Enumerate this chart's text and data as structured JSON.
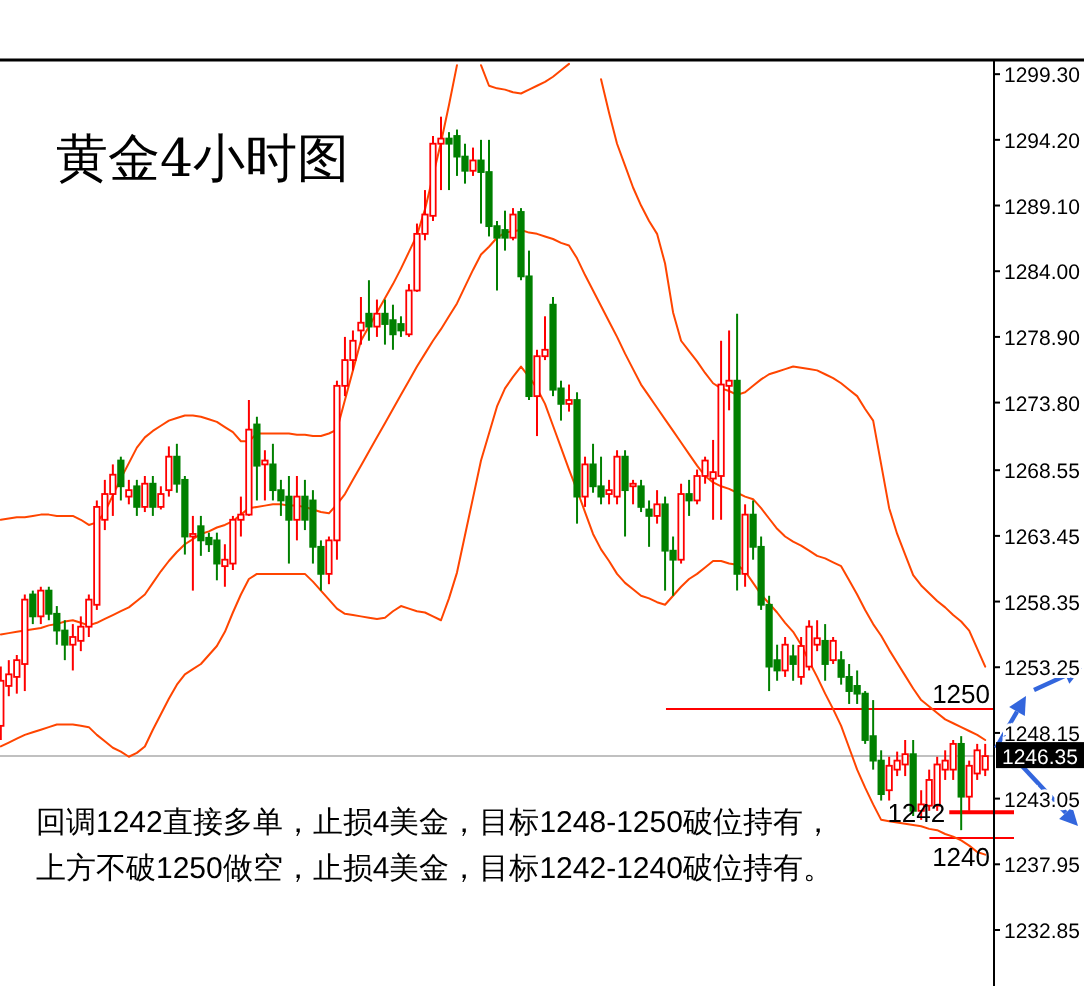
{
  "chart_data": {
    "type": "candlestick",
    "title": "黄金4小时图",
    "annotations": [
      "回调1242直接多单，止损4美金，目标1248-1250破位持有，",
      "上方不破1250做空，止损4美金，目标1242-1240破位持有。"
    ],
    "categories": [
      null,
      null,
      null,
      null,
      null,
      null,
      null,
      null,
      null,
      null,
      null,
      null,
      null,
      null,
      null,
      null,
      null,
      null,
      null,
      null,
      null,
      null,
      null,
      null,
      null,
      null,
      null,
      null,
      null,
      null,
      null,
      null,
      null,
      null,
      null,
      null,
      null,
      null,
      null,
      null,
      null,
      null,
      null,
      null,
      null,
      null,
      null,
      null,
      null,
      null,
      null,
      null,
      null,
      null,
      null,
      null,
      null,
      null,
      null,
      null,
      null,
      null,
      null,
      null,
      null,
      null,
      null,
      null,
      null,
      null,
      null,
      null,
      null,
      null,
      null,
      null,
      null,
      null,
      null,
      null,
      null,
      null,
      null,
      null,
      null,
      null,
      null,
      null,
      null,
      null,
      null,
      null,
      null,
      null,
      null,
      null,
      null,
      null,
      null,
      null,
      null,
      null,
      null,
      null,
      null,
      null,
      null,
      null,
      null,
      null,
      null,
      null,
      null,
      null,
      null,
      null,
      null,
      null,
      null,
      null,
      null,
      null,
      null,
      null
    ],
    "ohlc": [
      [
        1248.7,
        1253.3,
        1247.6,
        1252.2
      ],
      [
        1251.8,
        1253.8,
        1251.0,
        1252.7
      ],
      [
        1252.5,
        1254.2,
        1251.2,
        1253.8
      ],
      [
        1253.5,
        1258.9,
        1251.4,
        1258.5
      ],
      [
        1258.9,
        1259.2,
        1256.6,
        1257.2
      ],
      [
        1257.2,
        1259.5,
        1256.6,
        1259.2
      ],
      [
        1259.2,
        1259.5,
        1256.9,
        1257.4
      ],
      [
        1257.4,
        1258.0,
        1255.0,
        1256.1
      ],
      [
        1256.1,
        1256.9,
        1253.8,
        1255.0
      ],
      [
        1255.0,
        1256.6,
        1253.0,
        1255.6
      ],
      [
        1255.3,
        1257.2,
        1254.5,
        1256.4
      ],
      [
        1256.4,
        1258.9,
        1255.6,
        1258.5
      ],
      [
        1258.1,
        1266.2,
        1257.7,
        1265.7
      ],
      [
        1264.7,
        1267.8,
        1263.9,
        1266.7
      ],
      [
        1266.7,
        1269.0,
        1265.0,
        1268.2
      ],
      [
        1269.3,
        1269.6,
        1266.2,
        1267.3
      ],
      [
        1266.5,
        1267.8,
        1265.9,
        1267.0
      ],
      [
        1267.3,
        1267.8,
        1265.0,
        1265.7
      ],
      [
        1265.7,
        1268.1,
        1265.3,
        1267.5
      ],
      [
        1267.5,
        1268.1,
        1265.0,
        1265.7
      ],
      [
        1265.7,
        1267.3,
        1265.5,
        1266.7
      ],
      [
        1267.0,
        1270.4,
        1266.5,
        1269.6
      ],
      [
        1269.6,
        1270.6,
        1266.8,
        1267.5
      ],
      [
        1267.8,
        1268.1,
        1262.0,
        1263.4
      ],
      [
        1263.4,
        1265.0,
        1259.2,
        1263.6
      ],
      [
        1264.2,
        1265.0,
        1261.9,
        1263.1
      ],
      [
        1263.3,
        1263.7,
        1262.2,
        1262.8
      ],
      [
        1263.1,
        1263.7,
        1260.0,
        1261.3
      ],
      [
        1261.1,
        1262.8,
        1259.5,
        1261.6
      ],
      [
        1261.3,
        1265.0,
        1260.8,
        1264.7
      ],
      [
        1264.7,
        1266.5,
        1263.4,
        1265.1
      ],
      [
        1265.1,
        1274.0,
        1265.0,
        1271.7
      ],
      [
        1272.1,
        1272.7,
        1266.2,
        1268.9
      ],
      [
        1269.0,
        1270.1,
        1266.2,
        1269.3
      ],
      [
        1269.0,
        1270.6,
        1266.2,
        1267.0
      ],
      [
        1267.0,
        1267.8,
        1265.0,
        1266.2
      ],
      [
        1266.5,
        1268.1,
        1261.3,
        1264.7
      ],
      [
        1264.7,
        1268.1,
        1263.1,
        1266.5
      ],
      [
        1266.5,
        1267.8,
        1263.9,
        1264.7
      ],
      [
        1266.2,
        1267.0,
        1261.3,
        1262.6
      ],
      [
        1262.6,
        1263.1,
        1259.2,
        1260.5
      ],
      [
        1260.5,
        1263.4,
        1259.7,
        1263.1
      ],
      [
        1263.1,
        1275.5,
        1261.6,
        1275.1
      ],
      [
        1275.1,
        1278.9,
        1274.3,
        1277.1
      ],
      [
        1277.1,
        1279.4,
        1276.3,
        1278.6
      ],
      [
        1279.4,
        1282.0,
        1278.3,
        1280.0
      ],
      [
        1280.7,
        1283.3,
        1278.6,
        1279.7
      ],
      [
        1279.7,
        1281.8,
        1278.9,
        1280.7
      ],
      [
        1280.7,
        1281.8,
        1278.3,
        1279.9
      ],
      [
        1280.2,
        1281.4,
        1277.9,
        1279.1
      ],
      [
        1279.9,
        1280.5,
        1278.9,
        1279.4
      ],
      [
        1279.1,
        1283.0,
        1278.9,
        1282.5
      ],
      [
        1282.5,
        1287.7,
        1282.4,
        1286.9
      ],
      [
        1286.9,
        1290.3,
        1286.4,
        1288.4
      ],
      [
        1288.3,
        1294.5,
        1287.9,
        1293.9
      ],
      [
        1293.9,
        1296.0,
        1290.3,
        1294.3
      ],
      [
        1294.3,
        1294.8,
        1290.3,
        1293.9
      ],
      [
        1294.5,
        1295.0,
        1291.4,
        1292.9
      ],
      [
        1292.9,
        1293.9,
        1290.8,
        1291.8
      ],
      [
        1291.8,
        1293.6,
        1291.4,
        1292.6
      ],
      [
        1292.6,
        1294.2,
        1287.7,
        1291.7
      ],
      [
        1291.7,
        1294.2,
        1286.7,
        1287.5
      ],
      [
        1287.5,
        1287.9,
        1282.5,
        1286.6
      ],
      [
        1287.2,
        1288.7,
        1285.6,
        1286.6
      ],
      [
        1286.6,
        1288.9,
        1286.4,
        1288.4
      ],
      [
        1288.6,
        1288.9,
        1283.3,
        1283.6
      ],
      [
        1283.6,
        1285.6,
        1274.0,
        1274.3
      ],
      [
        1274.3,
        1277.9,
        1271.2,
        1277.4
      ],
      [
        1277.4,
        1280.5,
        1277.1,
        1277.9
      ],
      [
        1281.4,
        1282.0,
        1274.3,
        1274.8
      ],
      [
        1274.9,
        1275.5,
        1272.4,
        1273.7
      ],
      [
        1273.7,
        1275.2,
        1273.1,
        1274.0
      ],
      [
        1274.0,
        1274.6,
        1264.4,
        1266.5
      ],
      [
        1266.5,
        1269.6,
        1265.7,
        1269.0
      ],
      [
        1269.0,
        1270.6,
        1266.8,
        1267.3
      ],
      [
        1267.3,
        1269.6,
        1265.9,
        1266.5
      ],
      [
        1266.7,
        1267.8,
        1265.9,
        1267.0
      ],
      [
        1266.5,
        1270.1,
        1265.9,
        1269.6
      ],
      [
        1269.6,
        1270.1,
        1263.4,
        1267.0
      ],
      [
        1267.3,
        1267.8,
        1265.9,
        1267.5
      ],
      [
        1267.3,
        1267.8,
        1265.3,
        1265.7
      ],
      [
        1265.5,
        1266.2,
        1262.6,
        1265.0
      ],
      [
        1265.0,
        1267.0,
        1264.4,
        1265.9
      ],
      [
        1265.9,
        1266.5,
        1259.2,
        1262.3
      ],
      [
        1262.3,
        1263.4,
        1258.8,
        1261.6
      ],
      [
        1261.6,
        1267.5,
        1261.3,
        1266.7
      ],
      [
        1266.7,
        1267.8,
        1265.0,
        1266.2
      ],
      [
        1266.2,
        1268.6,
        1265.9,
        1268.1
      ],
      [
        1268.1,
        1269.6,
        1267.5,
        1269.3
      ],
      [
        1267.9,
        1270.9,
        1264.7,
        1268.4
      ],
      [
        1268.1,
        1278.6,
        1264.7,
        1275.2
      ],
      [
        1275.1,
        1279.4,
        1273.2,
        1275.5
      ],
      [
        1275.5,
        1280.7,
        1259.2,
        1260.5
      ],
      [
        1260.5,
        1265.9,
        1259.5,
        1265.1
      ],
      [
        1265.1,
        1266.2,
        1261.6,
        1262.6
      ],
      [
        1262.6,
        1263.4,
        1257.7,
        1258.1
      ],
      [
        1258.1,
        1258.8,
        1251.4,
        1253.3
      ],
      [
        1253.8,
        1255.0,
        1252.2,
        1253.0
      ],
      [
        1253.0,
        1255.6,
        1252.5,
        1255.0
      ],
      [
        1254.1,
        1255.0,
        1252.2,
        1253.5
      ],
      [
        1252.5,
        1255.6,
        1251.9,
        1254.9
      ],
      [
        1253.3,
        1256.9,
        1253.0,
        1256.4
      ],
      [
        1255.0,
        1256.9,
        1254.5,
        1255.5
      ],
      [
        1255.3,
        1256.6,
        1252.2,
        1253.5
      ],
      [
        1253.8,
        1255.6,
        1253.5,
        1255.3
      ],
      [
        1253.8,
        1254.5,
        1251.9,
        1252.5
      ],
      [
        1252.5,
        1253.5,
        1250.4,
        1251.4
      ],
      [
        1251.8,
        1253.0,
        1250.4,
        1251.2
      ],
      [
        1251.2,
        1251.4,
        1247.3,
        1247.6
      ],
      [
        1247.9,
        1250.7,
        1245.3,
        1246.0
      ],
      [
        1246.0,
        1246.8,
        1242.9,
        1243.4
      ],
      [
        1243.7,
        1246.3,
        1242.9,
        1245.6
      ],
      [
        1245.3,
        1246.7,
        1244.8,
        1246.0
      ],
      [
        1245.7,
        1247.6,
        1244.8,
        1246.5
      ],
      [
        1246.5,
        1247.6,
        1241.7,
        1242.1
      ],
      [
        1242.1,
        1243.7,
        1241.4,
        1242.6
      ],
      [
        1242.5,
        1245.3,
        1242.1,
        1244.5
      ],
      [
        1242.5,
        1246.3,
        1242.1,
        1245.7
      ],
      [
        1245.3,
        1246.8,
        1244.5,
        1246.0
      ],
      [
        1245.3,
        1247.6,
        1244.5,
        1247.3
      ],
      [
        1247.3,
        1247.9,
        1240.6,
        1243.2
      ],
      [
        1243.2,
        1246.0,
        1242.1,
        1245.6
      ],
      [
        1245.0,
        1247.3,
        1244.5,
        1246.8
      ],
      [
        1245.3,
        1247.3,
        1244.8,
        1246.35
      ]
    ],
    "series": [
      {
        "type": "line",
        "color": "#ff4500",
        "values": [
          1264.7,
          1264.8,
          1264.9,
          1264.9,
          1265.0,
          1265.1,
          1265.1,
          1265.0,
          1265.0,
          1265.0,
          1264.7,
          1264.3,
          1264.5,
          1265.3,
          1266.6,
          1267.9,
          1269.1,
          1270.3,
          1271.1,
          1271.6,
          1272.0,
          1272.4,
          1272.6,
          1272.8,
          1272.8,
          1272.7,
          1272.5,
          1272.3,
          1271.9,
          1271.5,
          1270.8,
          1270.8,
          1271.4,
          1271.4,
          1271.4,
          1271.4,
          1271.4,
          1271.3,
          1271.3,
          1271.2,
          1271.2,
          1271.4,
          1271.7,
          1274.0,
          1276.3,
          1278.6,
          1279.7,
          1280.8,
          1281.9,
          1283.0,
          1284.2,
          1285.5,
          1286.8,
          1288.8,
          1291.4,
          1294.0,
          1296.9,
          1300.0,
          null,
          null,
          1300.0,
          1298.4,
          1298.2,
          1298.1,
          1297.9,
          1297.8,
          1298.1,
          1298.4,
          1298.7,
          1299.1,
          1299.6,
          1300.1,
          null,
          null,
          null,
          1298.9,
          1296.3,
          1293.9,
          1292.2,
          1290.5,
          1289.1,
          1287.9,
          1286.9,
          1284.6,
          1280.8,
          1278.6,
          1277.8,
          1277.0,
          1276.1,
          1275.3,
          1274.9,
          1274.7,
          1274.4,
          1274.6,
          1275.1,
          1275.6,
          1276.0,
          1276.2,
          1276.4,
          1276.6,
          1276.5,
          1276.4,
          1276.3,
          1276.0,
          1275.7,
          1275.3,
          1274.8,
          1274.3,
          1273.3,
          1272.4,
          1269.0,
          1265.6,
          1263.6,
          1262.0,
          1260.4,
          1259.6,
          1259.0,
          1258.4,
          1257.9,
          1257.3,
          1256.8,
          1256.1,
          1254.7,
          1253.3
        ]
      },
      {
        "type": "line",
        "color": "#ff4500",
        "values": [
          1255.8,
          1255.9,
          1256.0,
          1256.1,
          1256.2,
          1256.3,
          1256.5,
          1256.6,
          1256.8,
          1256.9,
          1256.7,
          1256.5,
          1256.7,
          1257.0,
          1257.3,
          1257.6,
          1257.9,
          1258.4,
          1258.9,
          1259.8,
          1260.7,
          1261.5,
          1262.2,
          1262.8,
          1263.2,
          1263.6,
          1263.8,
          1264.1,
          1264.3,
          1264.6,
          1265.1,
          1265.6,
          1265.7,
          1265.8,
          1265.9,
          1265.9,
          1265.8,
          1265.8,
          1265.7,
          1265.5,
          1265.3,
          1265.2,
          1265.9,
          1266.7,
          1267.8,
          1268.9,
          1270.0,
          1271.1,
          1272.2,
          1273.3,
          1274.4,
          1275.5,
          1276.6,
          1277.6,
          1278.6,
          1279.5,
          1280.5,
          1281.5,
          1282.8,
          1284.1,
          1285.3,
          1285.9,
          1286.6,
          1287.0,
          1287.1,
          1287.2,
          1287.0,
          1286.9,
          1286.7,
          1286.5,
          1286.2,
          1286.0,
          1285.0,
          1283.7,
          1282.5,
          1281.3,
          1280.1,
          1278.9,
          1277.6,
          1276.4,
          1275.2,
          1274.3,
          1273.4,
          1272.5,
          1271.6,
          1270.7,
          1269.8,
          1268.9,
          1268.1,
          1267.6,
          1267.3,
          1267.1,
          1266.8,
          1266.5,
          1266.3,
          1265.6,
          1264.8,
          1264.0,
          1263.4,
          1263.0,
          1262.7,
          1262.3,
          1261.9,
          1261.7,
          1261.4,
          1261.1,
          1260.0,
          1258.9,
          1257.7,
          1256.6,
          1255.7,
          1254.6,
          1253.6,
          1252.6,
          1251.6,
          1250.7,
          1250.2,
          1249.7,
          1249.2,
          1248.9,
          1248.6,
          1248.3,
          1248.0,
          1247.6
        ]
      },
      {
        "type": "line",
        "color": "#ff4500",
        "values": [
          1247.1,
          1247.4,
          1247.7,
          1248.0,
          1248.2,
          1248.4,
          1248.6,
          1248.8,
          1248.8,
          1248.8,
          1248.7,
          1248.6,
          1248.0,
          1247.5,
          1247.0,
          1246.7,
          1246.3,
          1246.6,
          1247.1,
          1248.4,
          1249.6,
          1250.8,
          1251.9,
          1252.7,
          1253.1,
          1253.5,
          1254.2,
          1254.9,
          1256.0,
          1257.5,
          1258.9,
          1260.1,
          1260.5,
          1260.5,
          1260.5,
          1260.5,
          1260.5,
          1260.5,
          1260.5,
          1259.9,
          1259.2,
          1258.5,
          1257.8,
          1257.4,
          1257.3,
          1257.2,
          1257.1,
          1257.0,
          1257.1,
          1257.6,
          1258.0,
          1257.8,
          1257.6,
          1257.5,
          1257.2,
          1256.9,
          1258.6,
          1260.6,
          1263.5,
          1266.4,
          1269.3,
          1271.4,
          1273.5,
          1274.9,
          1275.8,
          1276.6,
          1275.8,
          1274.9,
          1273.7,
          1272.0,
          1270.3,
          1268.6,
          1267.0,
          1265.3,
          1263.6,
          1262.4,
          1261.5,
          1260.5,
          1259.8,
          1259.3,
          1258.8,
          1258.6,
          1258.3,
          1258.1,
          1258.8,
          1259.5,
          1260.1,
          1260.5,
          1261.0,
          1261.5,
          1261.5,
          1261.3,
          1261.2,
          1260.7,
          1259.8,
          1258.9,
          1258.2,
          1257.5,
          1256.7,
          1256.0,
          1255.0,
          1253.7,
          1252.5,
          1251.2,
          1250.0,
          1248.7,
          1247.0,
          1245.3,
          1243.9,
          1242.6,
          1241.4,
          1241.3,
          1241.2,
          1241.1,
          1241.0,
          1240.9,
          1240.7,
          1240.6,
          1240.3,
          1240.1,
          1239.8,
          1239.4,
          1238.9,
          1238.7
        ]
      }
    ],
    "ref_lines": [
      {
        "axis": "y",
        "value": 1246.35,
        "label": "1246.35",
        "color": "#c0c0c0"
      },
      {
        "axis": "y",
        "value": 1250,
        "label": "1250",
        "color": "#ff0000"
      },
      {
        "axis": "y",
        "value": 1242,
        "label": "1242",
        "color": "#ff0000"
      },
      {
        "axis": "y",
        "value": 1240,
        "label": "1240",
        "color": "#ff0000"
      }
    ],
    "ylim": [
      1228.5,
      1300.4
    ],
    "yticks": [
      {
        "value": 1232.85,
        "label": "1232.85"
      },
      {
        "value": 1237.95,
        "label": "1237.95"
      },
      {
        "value": 1243.05,
        "label": "1243.05"
      },
      {
        "value": 1248.15,
        "label": "1248.15"
      },
      {
        "value": 1253.25,
        "label": "1253.25"
      },
      {
        "value": 1258.35,
        "label": "1258.35"
      },
      {
        "value": 1263.45,
        "label": "1263.45"
      },
      {
        "value": 1268.55,
        "label": "1268.55"
      },
      {
        "value": 1273.8,
        "label": "1273.80"
      },
      {
        "value": 1278.9,
        "label": "1278.90"
      },
      {
        "value": 1284.0,
        "label": "1284.00"
      },
      {
        "value": 1289.1,
        "label": "1289.10"
      },
      {
        "value": 1294.2,
        "label": "1294.20"
      },
      {
        "value": 1299.3,
        "label": "1299.30"
      }
    ],
    "tick_labels": "y"
  }
}
